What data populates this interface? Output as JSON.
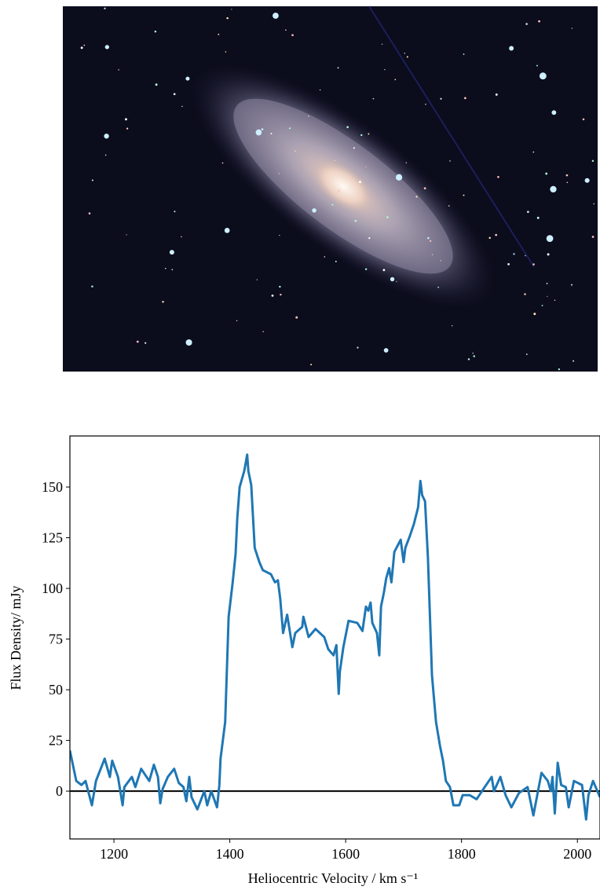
{
  "chart_data": {
    "type": "line",
    "xlabel": "Heliocentric Velocity / km s⁻¹",
    "ylabel": "Flux Density/ mJy",
    "x": [
      1124,
      1135,
      1144,
      1151,
      1162,
      1169,
      1184,
      1193,
      1197,
      1207,
      1215,
      1218,
      1231,
      1237,
      1247,
      1261,
      1269,
      1276,
      1280,
      1284,
      1293,
      1304,
      1312,
      1320,
      1325,
      1330,
      1334,
      1344,
      1356,
      1361,
      1368,
      1378,
      1382,
      1384,
      1392,
      1398,
      1405,
      1410,
      1413,
      1417,
      1425,
      1430,
      1432,
      1437,
      1443,
      1451,
      1457,
      1471,
      1478,
      1483,
      1487,
      1492,
      1499,
      1508,
      1513,
      1525,
      1527,
      1536,
      1548,
      1563,
      1570,
      1579,
      1584,
      1588,
      1590,
      1596,
      1605,
      1620,
      1629,
      1635,
      1639,
      1643,
      1646,
      1654,
      1658,
      1661,
      1666,
      1670,
      1675,
      1679,
      1684,
      1695,
      1700,
      1703,
      1711,
      1718,
      1725,
      1729,
      1732,
      1737,
      1742,
      1749,
      1756,
      1763,
      1768,
      1773,
      1780,
      1786,
      1796,
      1802,
      1814,
      1826,
      1840,
      1852,
      1856,
      1867,
      1876,
      1886,
      1899,
      1914,
      1924,
      1938,
      1949,
      1954,
      1957,
      1961,
      1966,
      1972,
      1980,
      1985,
      1994,
      2008,
      2015,
      2019,
      2027,
      2039
    ],
    "series": [
      {
        "color": "#1f77b4",
        "values": [
          20,
          5,
          3,
          5,
          -7,
          5,
          16,
          7,
          15,
          7,
          -7,
          2,
          7,
          2,
          11,
          5,
          13,
          7,
          -6,
          1,
          7,
          11,
          4,
          2,
          -5,
          7,
          -3,
          -9,
          0,
          -7,
          0,
          -8,
          3,
          16,
          34,
          86,
          103,
          117,
          135,
          150,
          158,
          166,
          158,
          151,
          120,
          113,
          109,
          107,
          103,
          104,
          95,
          78,
          87,
          71,
          78,
          81,
          86,
          76,
          80,
          76,
          70,
          67,
          72,
          48,
          59,
          71,
          84,
          83,
          79,
          91,
          89,
          93,
          83,
          78,
          67,
          91,
          98,
          105,
          110,
          103,
          118,
          124,
          113,
          120,
          126,
          132,
          140,
          153,
          146,
          143,
          115,
          57,
          34,
          22,
          15,
          5,
          2,
          -7,
          -7,
          -2,
          -2,
          -4,
          2,
          7,
          0,
          7,
          -2,
          -8,
          -1,
          2,
          -12,
          9,
          5,
          0,
          7,
          -11,
          14,
          3,
          2,
          -8,
          5,
          3,
          -14,
          -2,
          5,
          -3
        ]
      }
    ],
    "xlim": [
      1124,
      2039
    ],
    "ylim": [
      -23.6,
      175.2
    ],
    "xticks": [
      1200,
      1400,
      1600,
      1800,
      2000
    ],
    "yticks": [
      0,
      25,
      50,
      75,
      100,
      125,
      150
    ],
    "hline": 0
  }
}
